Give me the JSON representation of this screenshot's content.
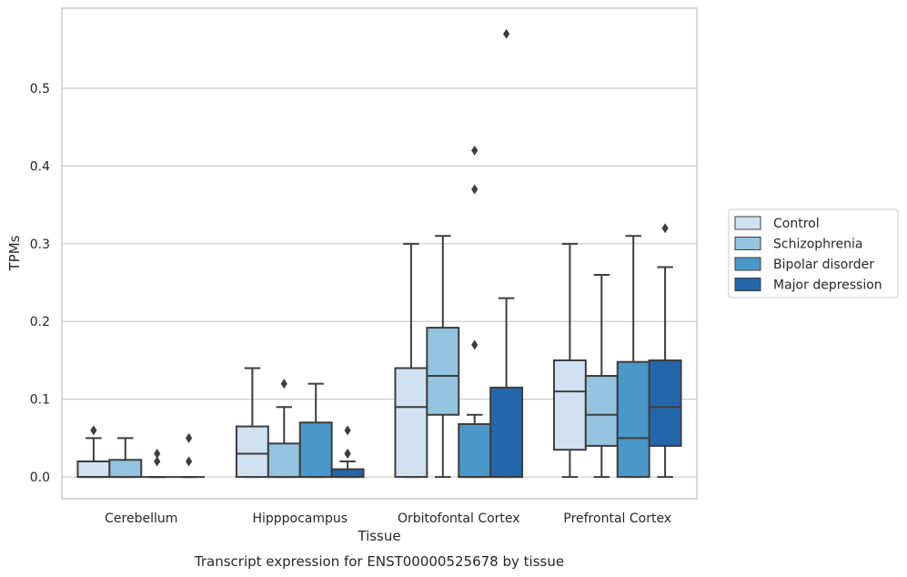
{
  "chart_data": {
    "type": "box",
    "title": "",
    "caption": "Transcript expression for ENST00000525678 by tissue",
    "xlabel": "Tissue",
    "ylabel": "TPMs",
    "ylim": [
      -0.028,
      0.603
    ],
    "yticks": [
      "0.0",
      "0.1",
      "0.2",
      "0.3",
      "0.4",
      "0.5"
    ],
    "grid": "horizontal",
    "legend_position": "right",
    "categories": [
      "Cerebellum",
      "Hipppocampus",
      "Orbitofontal Cortex",
      "Prefrontal Cortex"
    ],
    "series": [
      {
        "name": "Control",
        "color": "#d0e1f2",
        "boxes": [
          {
            "q1": 0.0,
            "median": 0.0,
            "q3": 0.02,
            "whisker_low": 0.0,
            "whisker_high": 0.05,
            "outliers": [
              0.06
            ]
          },
          {
            "q1": 0.0,
            "median": 0.03,
            "q3": 0.065,
            "whisker_low": 0.0,
            "whisker_high": 0.14,
            "outliers": []
          },
          {
            "q1": 0.0,
            "median": 0.09,
            "q3": 0.14,
            "whisker_low": 0.0,
            "whisker_high": 0.3,
            "outliers": []
          },
          {
            "q1": 0.035,
            "median": 0.11,
            "q3": 0.15,
            "whisker_low": 0.0,
            "whisker_high": 0.3,
            "outliers": []
          }
        ]
      },
      {
        "name": "Schizophrenia",
        "color": "#94c4df",
        "boxes": [
          {
            "q1": 0.0,
            "median": 0.0,
            "q3": 0.022,
            "whisker_low": 0.0,
            "whisker_high": 0.05,
            "outliers": []
          },
          {
            "q1": 0.0,
            "median": 0.0,
            "q3": 0.043,
            "whisker_low": 0.0,
            "whisker_high": 0.09,
            "outliers": [
              0.12
            ]
          },
          {
            "q1": 0.08,
            "median": 0.13,
            "q3": 0.192,
            "whisker_low": 0.0,
            "whisker_high": 0.31,
            "outliers": []
          },
          {
            "q1": 0.04,
            "median": 0.08,
            "q3": 0.13,
            "whisker_low": 0.0,
            "whisker_high": 0.26,
            "outliers": []
          }
        ]
      },
      {
        "name": "Bipolar disorder",
        "color": "#4a98c9",
        "boxes": [
          {
            "q1": 0.0,
            "median": 0.0,
            "q3": 0.0,
            "whisker_low": 0.0,
            "whisker_high": 0.0,
            "outliers": [
              0.02,
              0.03
            ]
          },
          {
            "q1": 0.0,
            "median": 0.0,
            "q3": 0.07,
            "whisker_low": 0.0,
            "whisker_high": 0.12,
            "outliers": []
          },
          {
            "q1": 0.0,
            "median": 0.0,
            "q3": 0.068,
            "whisker_low": 0.0,
            "whisker_high": 0.08,
            "outliers": [
              0.17,
              0.37,
              0.42
            ]
          },
          {
            "q1": 0.0,
            "median": 0.05,
            "q3": 0.148,
            "whisker_low": 0.0,
            "whisker_high": 0.31,
            "outliers": []
          }
        ]
      },
      {
        "name": "Major depression",
        "color": "#2366ab",
        "boxes": [
          {
            "q1": 0.0,
            "median": 0.0,
            "q3": 0.0,
            "whisker_low": 0.0,
            "whisker_high": 0.0,
            "outliers": [
              0.02,
              0.05
            ]
          },
          {
            "q1": 0.0,
            "median": 0.0,
            "q3": 0.01,
            "whisker_low": 0.0,
            "whisker_high": 0.02,
            "outliers": [
              0.03,
              0.03,
              0.06
            ]
          },
          {
            "q1": 0.0,
            "median": 0.0,
            "q3": 0.115,
            "whisker_low": 0.0,
            "whisker_high": 0.23,
            "outliers": [
              0.57
            ]
          },
          {
            "q1": 0.04,
            "median": 0.09,
            "q3": 0.15,
            "whisker_low": 0.0,
            "whisker_high": 0.27,
            "outliers": [
              0.32
            ]
          }
        ]
      }
    ]
  }
}
